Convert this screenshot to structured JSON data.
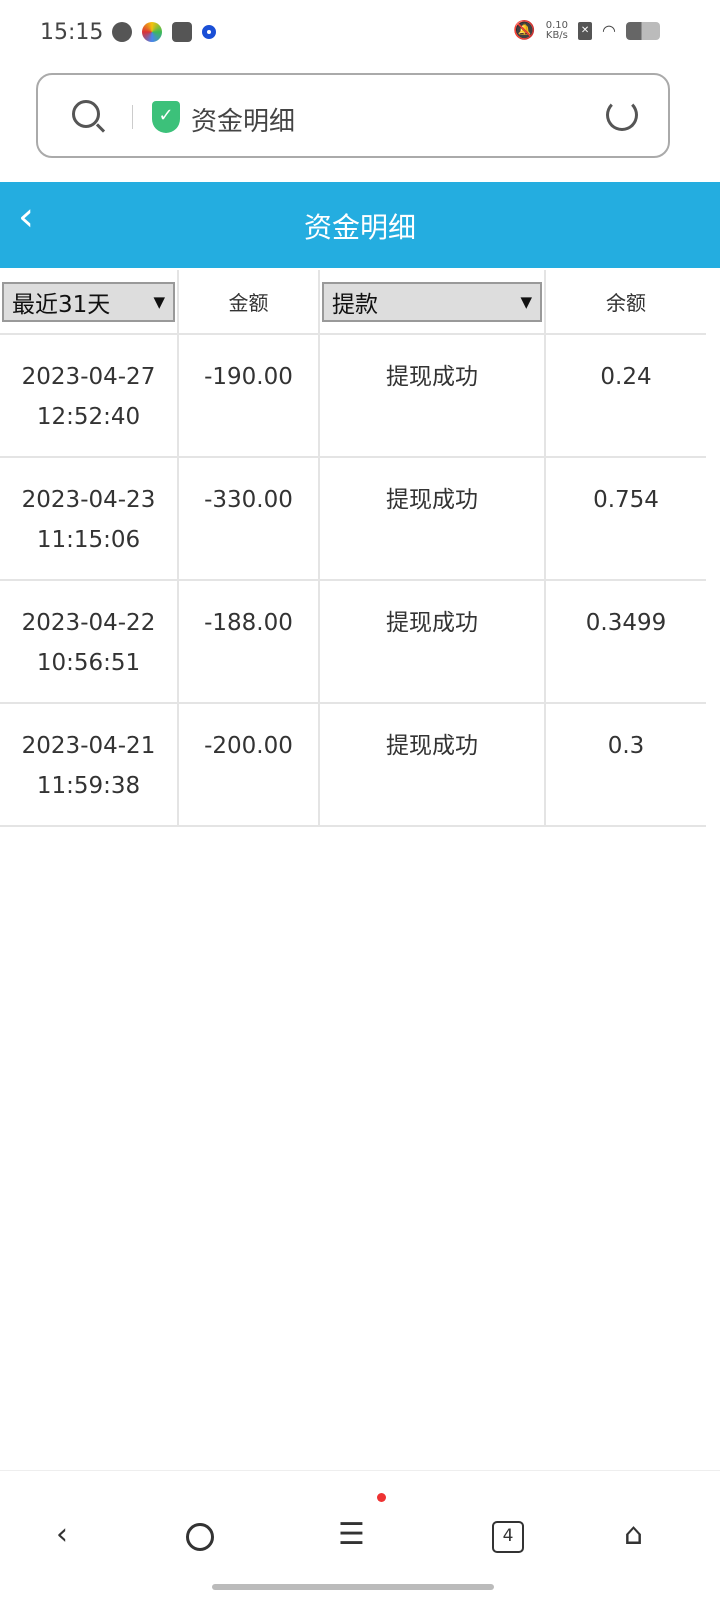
{
  "status": {
    "time": "15:15",
    "net_speed": "0.10",
    "net_unit": "KB/s"
  },
  "browser": {
    "url_title": "资金明细",
    "tab_count": "4"
  },
  "header": {
    "title": "资金明细"
  },
  "table": {
    "period_filter": "最近31天",
    "col_amount": "金额",
    "type_filter": "提款",
    "col_balance": "余额",
    "rows": [
      {
        "date": "2023-04-27",
        "time": "12:52:40",
        "amount": "-190.00",
        "status": "提现成功",
        "balance": "0.24"
      },
      {
        "date": "2023-04-23",
        "time": "11:15:06",
        "amount": "-330.00",
        "status": "提现成功",
        "balance": "0.754"
      },
      {
        "date": "2023-04-22",
        "time": "10:56:51",
        "amount": "-188.00",
        "status": "提现成功",
        "balance": "0.3499"
      },
      {
        "date": "2023-04-21",
        "time": "11:59:38",
        "amount": "-200.00",
        "status": "提现成功",
        "balance": "0.3"
      }
    ]
  },
  "colors": {
    "header": "#24ade0",
    "shield": "#3cc17a"
  }
}
